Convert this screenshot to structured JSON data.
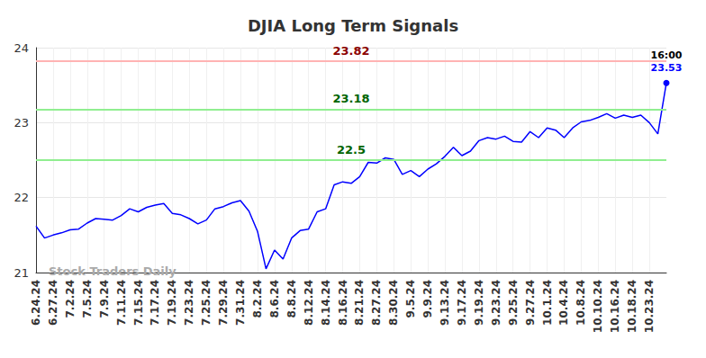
{
  "chart_data": {
    "type": "line",
    "title": "DJIA Long Term Signals",
    "categories": [
      "6.24.24",
      null,
      "6.27.24",
      null,
      "7.2.24",
      null,
      "7.5.24",
      null,
      "7.9.24",
      null,
      "7.11.24",
      null,
      "7.15.24",
      null,
      "7.17.24",
      null,
      "7.19.24",
      null,
      "7.23.24",
      null,
      "7.25.24",
      null,
      "7.29.24",
      null,
      "7.31.24",
      null,
      "8.2.24",
      null,
      "8.6.24",
      null,
      "8.8.24",
      null,
      "8.12.24",
      null,
      "8.14.24",
      null,
      "8.16.24",
      null,
      "8.21.24",
      null,
      "8.27.24",
      null,
      "8.30.24",
      null,
      "9.5.24",
      null,
      "9.9.24",
      null,
      "9.13.24",
      null,
      "9.17.24",
      null,
      "9.19.24",
      null,
      "9.23.24",
      null,
      "9.25.24",
      null,
      "9.27.24",
      null,
      "10.1.24",
      null,
      "10.4.24",
      null,
      "10.8.24",
      null,
      "10.10.24",
      null,
      "10.16.24",
      null,
      "10.18.24",
      null,
      "10.23.24",
      null,
      null
    ],
    "series": [
      {
        "name": "DJIA",
        "color": "#0000ff",
        "values": [
          21.62,
          21.46,
          21.5,
          21.53,
          21.57,
          21.58,
          21.66,
          21.72,
          21.71,
          21.7,
          21.76,
          21.85,
          21.81,
          21.87,
          21.9,
          21.92,
          21.79,
          21.77,
          21.72,
          21.65,
          21.7,
          21.85,
          21.88,
          21.93,
          21.96,
          21.82,
          21.55,
          21.05,
          21.3,
          21.18,
          21.46,
          21.56,
          21.58,
          21.81,
          21.85,
          22.17,
          22.21,
          22.19,
          22.28,
          22.47,
          22.46,
          22.53,
          22.51,
          22.31,
          22.36,
          22.28,
          22.38,
          22.45,
          22.55,
          22.67,
          22.56,
          22.62,
          22.76,
          22.8,
          22.78,
          22.82,
          22.75,
          22.74,
          22.88,
          22.8,
          22.93,
          22.9,
          22.8,
          22.93,
          23.01,
          23.03,
          23.07,
          23.12,
          23.06,
          23.1,
          23.07,
          23.1,
          23.0,
          22.85,
          23.53
        ]
      }
    ],
    "hlines": [
      {
        "value": 23.82,
        "color": "#ffb3b3",
        "label_color": "#8b0000"
      },
      {
        "value": 23.18,
        "color": "#90ee90",
        "label_color": "#006400"
      },
      {
        "value": 22.5,
        "color": "#90ee90",
        "label_color": "#006400"
      }
    ],
    "last_point_label": "16:00",
    "watermark": "Stock Traders Daily",
    "ylim": [
      21,
      24
    ],
    "yticks": [
      21,
      22,
      23,
      24
    ],
    "grid": true
  }
}
